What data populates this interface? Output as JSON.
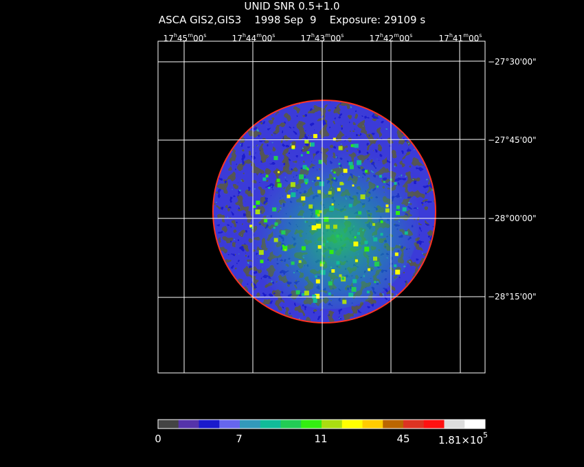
{
  "header": {
    "title": "UNID SNR 0.5+1.0",
    "instrument": "ASCA GIS2,GIS3",
    "date": "1998 Sep  9",
    "exposure": "Exposure: 29109 s"
  },
  "ra_ticks": [
    {
      "h": "17",
      "m": "45",
      "s": "00"
    },
    {
      "h": "17",
      "m": "44",
      "s": "00"
    },
    {
      "h": "17",
      "m": "43",
      "s": "00"
    },
    {
      "h": "17",
      "m": "42",
      "s": "00"
    },
    {
      "h": "17",
      "m": "41",
      "s": "00"
    }
  ],
  "dec_ticks": [
    "−27°30'00\"",
    "−27°45'00\"",
    "−28°00'00\"",
    "−28°15'00\""
  ],
  "colorbar": {
    "colors": [
      "#444444",
      "#5533aa",
      "#1a1acc",
      "#6666ee",
      "#3399bb",
      "#11bb99",
      "#22cc55",
      "#33ee11",
      "#aadd11",
      "#ffff00",
      "#ffcc00",
      "#bb6600",
      "#dd3322",
      "#ff1111",
      "#dddddd",
      "#ffffff"
    ],
    "labels": [
      "0",
      "7",
      "11",
      "45",
      "1.81×10",
      "5"
    ]
  },
  "image": {
    "rim_color": "#ff3322",
    "background": "#000000",
    "grid_color": "#ffffff"
  }
}
